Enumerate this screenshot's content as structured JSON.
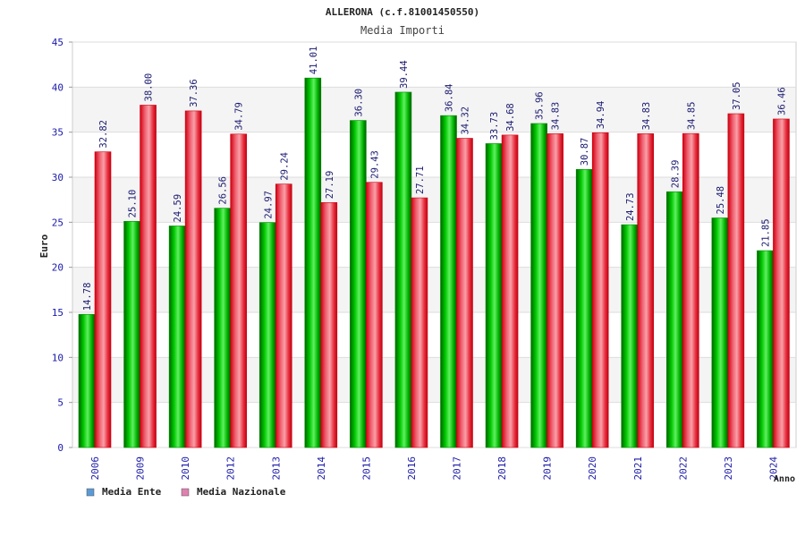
{
  "chart_data": {
    "type": "bar",
    "title": "ALLERONA (c.f.81001450550)",
    "subtitle": "Media Importi",
    "xlabel": "Anno",
    "ylabel": "Euro",
    "ylim": [
      0,
      45
    ],
    "yticks": [
      "0",
      "5",
      "10",
      "15",
      "20",
      "25",
      "30",
      "35",
      "40",
      "45"
    ],
    "grid": true,
    "legend_position": "bottom-left",
    "categories": [
      "2006",
      "2009",
      "2010",
      "2012",
      "2013",
      "2014",
      "2015",
      "2016",
      "2017",
      "2018",
      "2019",
      "2020",
      "2021",
      "2022",
      "2023",
      "2024"
    ],
    "series": [
      {
        "name": "Media Ente",
        "legend_color": "#5b9bd5",
        "bar_color": "#00a800",
        "values": [
          14.78,
          25.1,
          24.59,
          26.56,
          24.97,
          41.01,
          36.3,
          39.44,
          36.84,
          33.73,
          35.96,
          30.87,
          24.73,
          28.39,
          25.48,
          21.85
        ],
        "labels": [
          "14.78",
          "25.10",
          "24.59",
          "26.56",
          "24.97",
          "41.01",
          "36.30",
          "39.44",
          "36.84",
          "33.73",
          "35.96",
          "30.87",
          "24.73",
          "28.39",
          "25.48",
          "21.85"
        ]
      },
      {
        "name": "Media Nazionale",
        "legend_color": "#e080b0",
        "bar_color": "#e8101e",
        "values": [
          32.82,
          38.0,
          37.36,
          34.79,
          29.24,
          27.19,
          29.43,
          27.71,
          34.32,
          34.68,
          34.83,
          34.94,
          34.83,
          34.85,
          37.05,
          36.46
        ],
        "labels": [
          "32.82",
          "38.00",
          "37.36",
          "34.79",
          "29.24",
          "27.19",
          "29.43",
          "27.71",
          "34.32",
          "34.68",
          "34.83",
          "34.94",
          "34.83",
          "34.85",
          "37.05",
          "36.46"
        ]
      }
    ]
  }
}
